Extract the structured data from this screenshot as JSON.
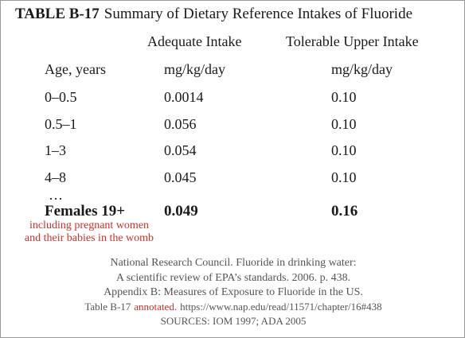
{
  "table": {
    "label": "TABLE B-17",
    "title": "Summary of Dietary Reference Intakes of Fluoride",
    "column_headers": [
      "Adequate Intake",
      "Tolerable Upper Intake"
    ],
    "units_row": [
      "Age, years",
      "mg/kg/day",
      "mg/kg/day"
    ],
    "rows": [
      [
        "0–0.5",
        "0.0014",
        "0.10"
      ],
      [
        "0.5–1",
        "0.056",
        "0.10"
      ],
      [
        "1–3",
        "0.054",
        "0.10"
      ],
      [
        "4–8",
        "0.045",
        "0.10"
      ]
    ],
    "ellipsis": "…",
    "last_row": [
      "Females 19+",
      "0.049",
      "0.16"
    ],
    "note": [
      "including pregnant women",
      "and their babies in the womb"
    ]
  },
  "source": {
    "lines": [
      "National Research Council. Fluoride in drinking water:",
      "A scientific review of EPA’s standards. 2006. p. 438.",
      "Appendix B: Measures of Exposure to Fluoride in the US."
    ],
    "annotated_line": {
      "prefix": "Table B-17",
      "annotation": "annotated.",
      "url": "https://www.nap.edu/read/11571/chapter/16#438"
    },
    "final": "SOURCES: IOM 1997; ADA 2005"
  }
}
